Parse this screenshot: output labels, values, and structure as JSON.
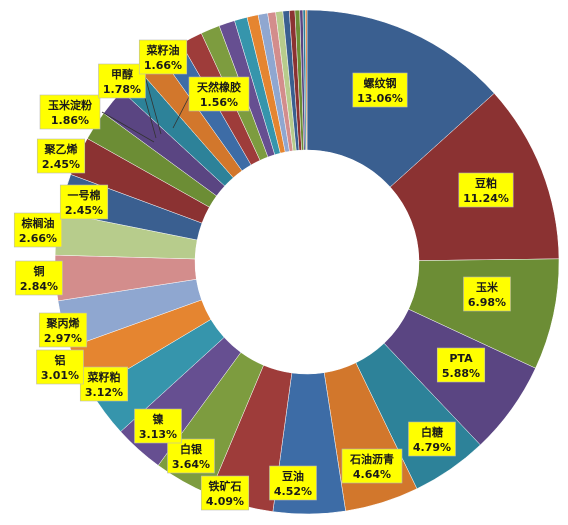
{
  "colors": {
    "label_bg": "#ffff00",
    "palette": [
      "#3a5f90",
      "#8b3232",
      "#6c8d35",
      "#5a4582",
      "#2d8299",
      "#d2772c",
      "#3d6ca6",
      "#9e3c3a",
      "#7d9c3f",
      "#664f91",
      "#3695ac",
      "#e58530",
      "#8fa7d0",
      "#d38d8c",
      "#b7cc8c"
    ]
  },
  "chart_data": {
    "type": "pie",
    "donut": true,
    "title": "",
    "slices": [
      {
        "label": "螺纹钢",
        "value_text": "13.06%",
        "value": 13.06
      },
      {
        "label": "豆粕",
        "value_text": "11.24%",
        "value": 11.24
      },
      {
        "label": "玉米",
        "value_text": "6.98%",
        "value": 6.98
      },
      {
        "label": "PTA",
        "value_text": "5.88%",
        "value": 5.88
      },
      {
        "label": "白糖",
        "value_text": "4.79%",
        "value": 4.79
      },
      {
        "label": "石油沥青",
        "value_text": "4.64%",
        "value": 4.64
      },
      {
        "label": "豆油",
        "value_text": "4.52%",
        "value": 4.52
      },
      {
        "label": "铁矿石",
        "value_text": "4.09%",
        "value": 4.09
      },
      {
        "label": "白银",
        "value_text": "3.64%",
        "value": 3.64
      },
      {
        "label": "镍",
        "value_text": "3.13%",
        "value": 3.13
      },
      {
        "label": "菜籽粕",
        "value_text": "3.12%",
        "value": 3.12
      },
      {
        "label": "铝",
        "value_text": "3.01%",
        "value": 3.01
      },
      {
        "label": "聚丙烯",
        "value_text": "2.97%",
        "value": 2.97
      },
      {
        "label": "铜",
        "value_text": "2.84%",
        "value": 2.84
      },
      {
        "label": "棕榈油",
        "value_text": "2.66%",
        "value": 2.66
      },
      {
        "label": "一号棉",
        "value_text": "2.45%",
        "value": 2.45
      },
      {
        "label": "聚乙烯",
        "value_text": "2.45%",
        "value": 2.45
      },
      {
        "label": "玉米淀粉",
        "value_text": "1.86%",
        "value": 1.86
      },
      {
        "label": "甲醇",
        "value_text": "1.78%",
        "value": 1.78
      },
      {
        "label": "菜籽油",
        "value_text": "1.66%",
        "value": 1.66
      },
      {
        "label": "天然橡胶",
        "value_text": "1.56%",
        "value": 1.56
      }
    ],
    "unlabeled_values": [
      1.5,
      1.4,
      1.2,
      1.0,
      0.8,
      0.7,
      0.6,
      0.5,
      0.45,
      0.4,
      0.35,
      0.3,
      0.2,
      0.15,
      0.1
    ],
    "legend": "none"
  }
}
